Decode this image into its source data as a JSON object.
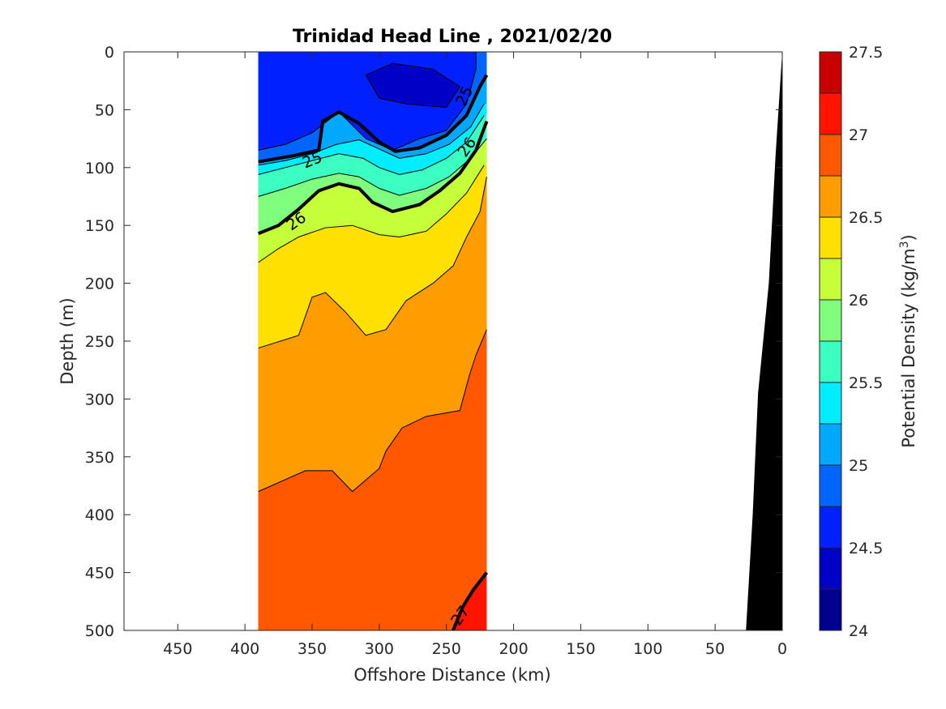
{
  "chart_data": {
    "type": "contour",
    "title": "Trinidad Head Line , 2021/02/20",
    "xlabel": "Offshore Distance (km)",
    "ylabel": "Depth (m)",
    "colorbar_label": "Potential Density (kg/m",
    "colorbar_label_superscript": "3",
    "colorbar_label_suffix": ")",
    "x_reversed": true,
    "y_reversed": true,
    "xlim": [
      0,
      490
    ],
    "ylim": [
      0,
      500
    ],
    "x_ticks": [
      450,
      400,
      350,
      300,
      250,
      200,
      150,
      100,
      50,
      0
    ],
    "y_ticks": [
      0,
      50,
      100,
      150,
      200,
      250,
      300,
      350,
      400,
      450,
      500
    ],
    "data_x_range": [
      220,
      390
    ],
    "colorbar": {
      "min": 24,
      "max": 27.5,
      "step": 0.25,
      "tick_values": [
        24,
        24.5,
        25,
        25.5,
        26,
        26.5,
        27,
        27.5
      ],
      "tick_labels": [
        "24",
        "24.5",
        "25",
        "25.5",
        "26",
        "26.5",
        "27",
        "27.5"
      ],
      "colors": [
        "#00008e",
        "#0000c6",
        "#0020ff",
        "#0064ff",
        "#00a8ff",
        "#00ecff",
        "#3cffc2",
        "#80ff7e",
        "#c4ff3a",
        "#ffe000",
        "#ff9c00",
        "#ff5800",
        "#ff1400",
        "#c80000"
      ]
    },
    "contour_labels": [
      "25",
      "25",
      "26",
      "26",
      "27"
    ],
    "isopycnals": [
      {
        "level": 24.5,
        "points": [
          [
            300,
            40
          ],
          [
            280,
            45
          ],
          [
            250,
            48
          ],
          [
            240,
            30
          ],
          [
            260,
            15
          ],
          [
            290,
            10
          ],
          [
            310,
            20
          ],
          [
            300,
            40
          ]
        ]
      },
      {
        "level": 24.75,
        "points": [
          [
            390,
            85
          ],
          [
            370,
            80
          ],
          [
            350,
            70
          ],
          [
            330,
            52
          ],
          [
            310,
            75
          ],
          [
            290,
            85
          ],
          [
            270,
            75
          ],
          [
            250,
            68
          ],
          [
            235,
            45
          ],
          [
            228,
            15
          ],
          [
            228,
            0
          ]
        ]
      },
      {
        "level": 25,
        "points": [
          [
            390,
            95
          ],
          [
            365,
            90
          ],
          [
            345,
            85
          ],
          [
            342,
            60
          ],
          [
            330,
            52
          ],
          [
            315,
            62
          ],
          [
            300,
            78
          ],
          [
            288,
            86
          ],
          [
            270,
            83
          ],
          [
            250,
            72
          ],
          [
            235,
            55
          ],
          [
            225,
            30
          ],
          [
            220,
            20
          ]
        ]
      },
      {
        "level": 25.25,
        "points": [
          [
            390,
            98
          ],
          [
            370,
            94
          ],
          [
            350,
            88
          ],
          [
            332,
            80
          ],
          [
            315,
            76
          ],
          [
            300,
            84
          ],
          [
            285,
            92
          ],
          [
            265,
            88
          ],
          [
            248,
            80
          ],
          [
            232,
            65
          ],
          [
            222,
            45
          ]
        ]
      },
      {
        "level": 25.5,
        "points": [
          [
            390,
            106
          ],
          [
            370,
            100
          ],
          [
            350,
            94
          ],
          [
            330,
            88
          ],
          [
            312,
            92
          ],
          [
            300,
            100
          ],
          [
            285,
            106
          ],
          [
            268,
            102
          ],
          [
            250,
            92
          ],
          [
            235,
            78
          ],
          [
            222,
            55
          ]
        ]
      },
      {
        "level": 25.75,
        "points": [
          [
            390,
            125
          ],
          [
            370,
            118
          ],
          [
            350,
            110
          ],
          [
            330,
            105
          ],
          [
            315,
            108
          ],
          [
            300,
            118
          ],
          [
            285,
            124
          ],
          [
            265,
            118
          ],
          [
            248,
            108
          ],
          [
            232,
            92
          ],
          [
            220,
            75
          ]
        ]
      },
      {
        "level": 26,
        "points": [
          [
            390,
            157
          ],
          [
            375,
            150
          ],
          [
            360,
            136
          ],
          [
            345,
            120
          ],
          [
            330,
            114
          ],
          [
            315,
            118
          ],
          [
            305,
            130
          ],
          [
            290,
            138
          ],
          [
            270,
            132
          ],
          [
            255,
            120
          ],
          [
            240,
            105
          ],
          [
            228,
            85
          ],
          [
            220,
            60
          ]
        ]
      },
      {
        "level": 26.25,
        "points": [
          [
            390,
            182
          ],
          [
            375,
            170
          ],
          [
            360,
            160
          ],
          [
            340,
            152
          ],
          [
            320,
            150
          ],
          [
            300,
            158
          ],
          [
            285,
            160
          ],
          [
            265,
            155
          ],
          [
            250,
            140
          ],
          [
            235,
            122
          ],
          [
            222,
            98
          ]
        ]
      },
      {
        "level": 26.5,
        "points": [
          [
            390,
            256
          ],
          [
            360,
            245
          ],
          [
            350,
            212
          ],
          [
            340,
            208
          ],
          [
            325,
            225
          ],
          [
            310,
            245
          ],
          [
            295,
            240
          ],
          [
            280,
            215
          ],
          [
            260,
            200
          ],
          [
            245,
            185
          ],
          [
            235,
            160
          ],
          [
            225,
            138
          ],
          [
            220,
            108
          ]
        ]
      },
      {
        "level": 26.75,
        "points": [
          [
            390,
            380
          ],
          [
            355,
            362
          ],
          [
            335,
            362
          ],
          [
            320,
            380
          ],
          [
            300,
            360
          ],
          [
            295,
            345
          ],
          [
            283,
            325
          ],
          [
            265,
            315
          ],
          [
            240,
            310
          ],
          [
            233,
            280
          ],
          [
            228,
            262
          ],
          [
            220,
            240
          ]
        ]
      },
      {
        "level": 27,
        "points": [
          [
            245,
            500
          ],
          [
            238,
            480
          ],
          [
            230,
            465
          ],
          [
            220,
            450
          ]
        ]
      }
    ],
    "bathymetry": [
      [
        27,
        500
      ],
      [
        22,
        400
      ],
      [
        18,
        295
      ],
      [
        10,
        200
      ],
      [
        5,
        90
      ],
      [
        0,
        0
      ]
    ]
  }
}
